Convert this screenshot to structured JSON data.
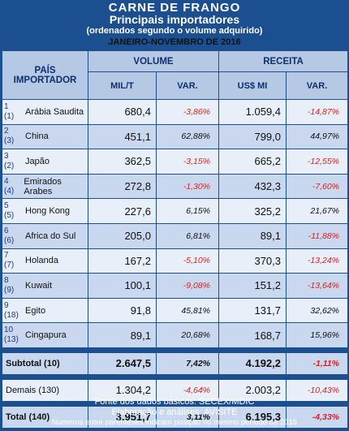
{
  "header": {
    "title": "CARNE DE FRANGO",
    "subtitle": "Principais importadores",
    "note": "(ordenados segundo o volume adquirido)",
    "period": "JANEIRO-NOVEMBRO DE 2016"
  },
  "columns": {
    "country": "PAÍS IMPORTADOR",
    "volume": "VOLUME",
    "receita": "RECEITA",
    "mil_t": "MIL/T",
    "var": "VAR.",
    "us_mi": "US$ MI"
  },
  "rows": [
    {
      "rank": "1",
      "prev": "(1)",
      "country": "Arábia Saudita",
      "volume": "680,4",
      "vol_var": "-3,86%",
      "receita": "1.059,4",
      "rec_var": "-14,87%"
    },
    {
      "rank": "2",
      "prev": "(3)",
      "country": "China",
      "volume": "451,1",
      "vol_var": "62,88%",
      "receita": "799,0",
      "rec_var": "44,97%"
    },
    {
      "rank": "3",
      "prev": "(2)",
      "country": "Japão",
      "volume": "362,5",
      "vol_var": "-3,15%",
      "receita": "665,2",
      "rec_var": "-12,55%"
    },
    {
      "rank": "4",
      "prev": "(4)",
      "country": "Emirados Arabes",
      "volume": "272,8",
      "vol_var": "-1,30%",
      "receita": "432,3",
      "rec_var": "-7,60%"
    },
    {
      "rank": "5",
      "prev": "(5)",
      "country": "Hong Kong",
      "volume": "227,6",
      "vol_var": "6,15%",
      "receita": "325,2",
      "rec_var": "21,67%"
    },
    {
      "rank": "6",
      "prev": "(6)",
      "country": "Africa do Sul",
      "volume": "205,0",
      "vol_var": "6,81%",
      "receita": "89,1",
      "rec_var": "-11,88%"
    },
    {
      "rank": "7",
      "prev": "(7)",
      "country": "Holanda",
      "volume": "167,2",
      "vol_var": "-5,10%",
      "receita": "370,3",
      "rec_var": "-13,24%"
    },
    {
      "rank": "8",
      "prev": "(9)",
      "country": "Kuwait",
      "volume": "100,1",
      "vol_var": "-9,08%",
      "receita": "151,2",
      "rec_var": "-13,64%"
    },
    {
      "rank": "9",
      "prev": "(18)",
      "country": "Egito",
      "volume": "91,8",
      "vol_var": "45,81%",
      "receita": "131,7",
      "rec_var": "32,62%"
    },
    {
      "rank": "10",
      "prev": "(13)",
      "country": "Cingapura",
      "volume": "89,1",
      "vol_var": "20,68%",
      "receita": "168,7",
      "rec_var": "15,96%"
    }
  ],
  "subtotal": {
    "label": "Subtotal  (10)",
    "volume": "2.647,5",
    "vol_var": "7,42%",
    "receita": "4.192,2",
    "rec_var": "-1,11%"
  },
  "demais": {
    "label": "Demais (130)",
    "volume": "1.304,2",
    "vol_var": "-4,64%",
    "receita": "2.003,2",
    "rec_var": "-10,43%"
  },
  "total": {
    "label": "Total  (140)",
    "volume": "3.951,7",
    "vol_var": "3,11%",
    "receita": "6.195,3",
    "rec_var": "-4,33%"
  },
  "footer": {
    "source": "Fonte dos dados básicos: SECEX/MDIC",
    "credits": "Elaboração e análises: AVISITE",
    "note": "Números entre parênteses indicam posição no mesmo período de 2015"
  },
  "colors": {
    "background": "#1b4f8f",
    "header_cell": "#b6c9e4",
    "row_light": "#e8eff8",
    "row_dark": "#c9d8ee",
    "negative": "#e02020"
  }
}
